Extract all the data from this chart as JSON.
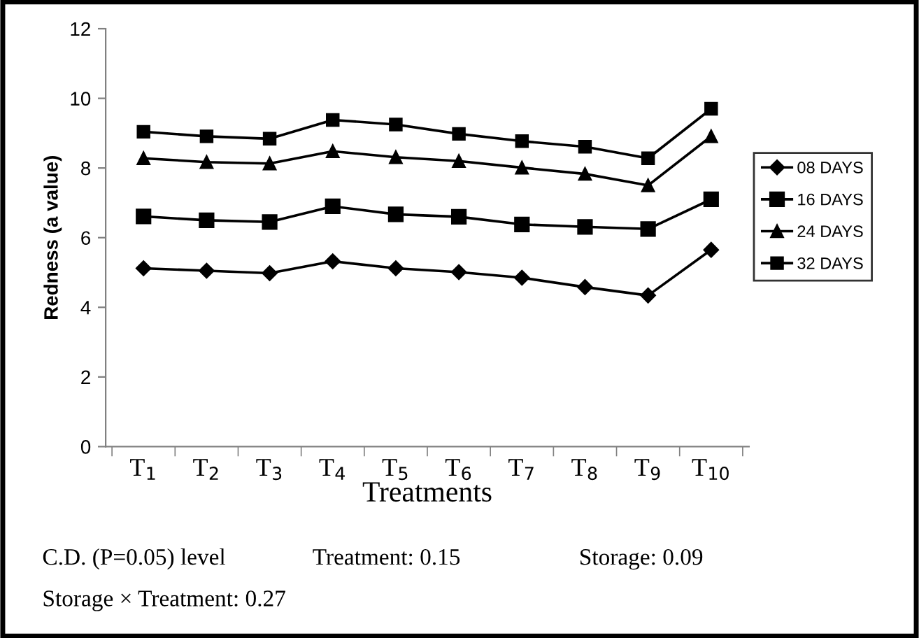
{
  "chart_data": {
    "type": "line",
    "xlabel": "Treatments",
    "ylabel": "Redness (a value)",
    "categories": [
      "T$_{1}$",
      "T$_{2}$",
      "T$_{3}$",
      "T$_{4}$",
      "T$_{5}$",
      "T$_{6}$",
      "T$_{7}$",
      "T$_{8}$",
      "T$_{9}$",
      "T$_{10}$"
    ],
    "series": [
      {
        "name": "08 DAYS",
        "color": "#000000",
        "marker": "diamond",
        "values": [
          5.12,
          5.05,
          4.98,
          5.32,
          5.12,
          5.01,
          4.85,
          4.58,
          4.34,
          5.65
        ]
      },
      {
        "name": "16 DAYS",
        "color": "#000000",
        "marker": "square",
        "values": [
          6.61,
          6.5,
          6.45,
          6.9,
          6.67,
          6.6,
          6.38,
          6.31,
          6.25,
          7.1
        ]
      },
      {
        "name": "24 DAYS",
        "color": "#000000",
        "marker": "triangle",
        "values": [
          8.28,
          8.17,
          8.13,
          8.48,
          8.31,
          8.2,
          8.01,
          7.83,
          7.5,
          8.91
        ]
      },
      {
        "name": "32 DAYS",
        "color": "#000000",
        "marker": "square",
        "values": [
          9.04,
          8.91,
          8.84,
          9.38,
          9.25,
          8.98,
          8.77,
          8.61,
          8.28,
          9.7
        ]
      }
    ],
    "ylim": [
      0,
      12
    ],
    "yticks": [
      0,
      2,
      4,
      6,
      8,
      10,
      12
    ],
    "grid": false,
    "legend": "right",
    "line_style": "solid",
    "annotations": [
      "C.D. (P=0.05) level",
      "Treatment: 0.15",
      "Storage: 0.09",
      "Storage × Treatment: 0.27"
    ]
  }
}
